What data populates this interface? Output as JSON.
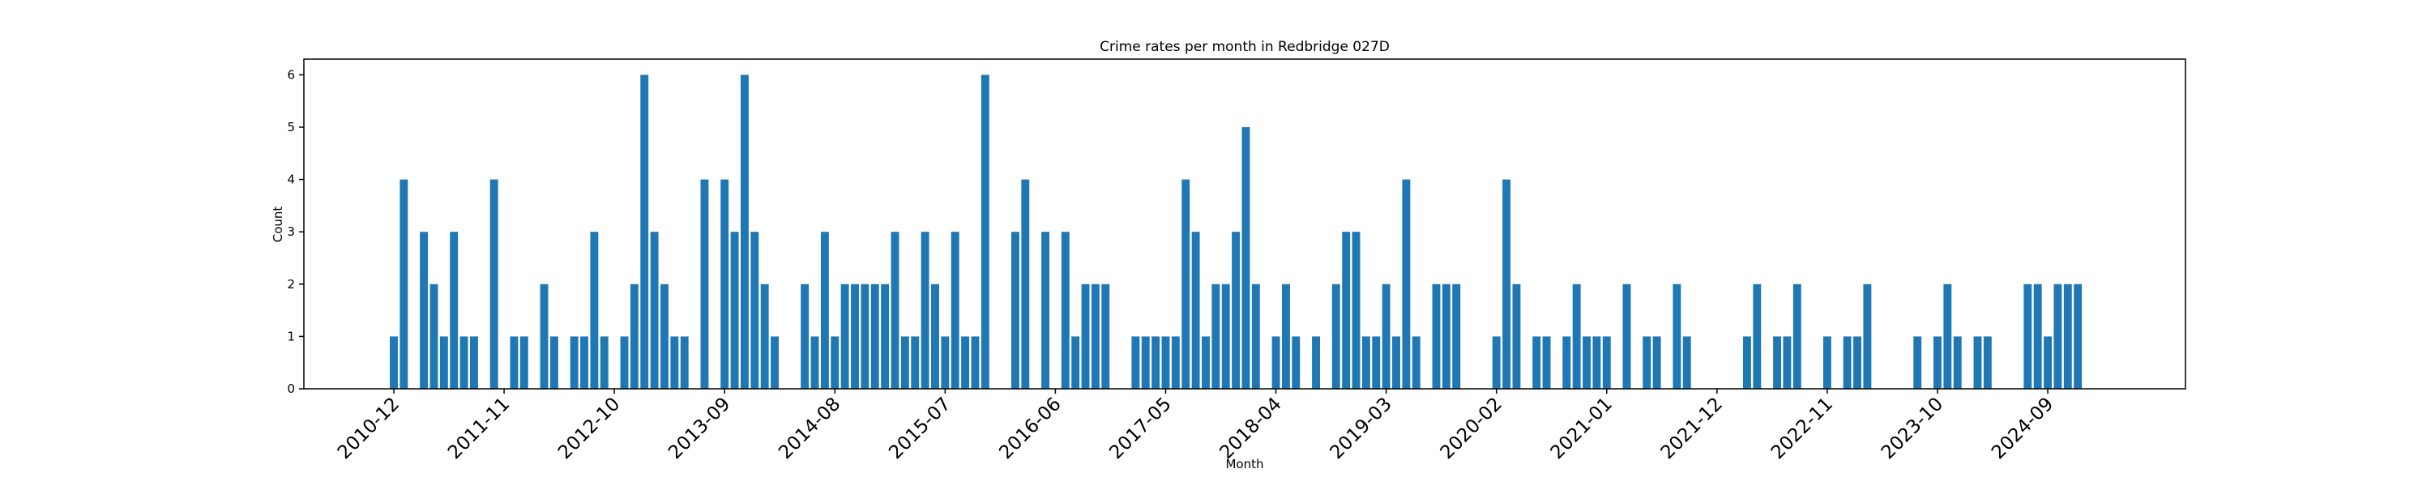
{
  "chart_data": {
    "type": "bar",
    "title": "Crime rates per month in Redbridge 027D",
    "x_label": "Month",
    "y_label": "Count",
    "color": "#1f77b4",
    "categories": [
      "2010-12",
      null,
      null,
      null,
      null,
      null,
      null,
      null,
      null,
      null,
      null,
      "2011-11",
      null,
      null,
      null,
      null,
      null,
      null,
      null,
      null,
      null,
      null,
      "2012-10",
      null,
      null,
      null,
      null,
      null,
      null,
      null,
      null,
      null,
      null,
      "2013-09",
      null,
      null,
      null,
      null,
      null,
      null,
      null,
      null,
      null,
      null,
      "2014-08",
      null,
      null,
      null,
      null,
      null,
      null,
      null,
      null,
      null,
      null,
      "2015-07",
      null,
      null,
      null,
      null,
      null,
      null,
      null,
      null,
      null,
      null,
      "2016-06",
      null,
      null,
      null,
      null,
      null,
      null,
      null,
      null,
      null,
      null,
      "2017-05",
      null,
      null,
      null,
      null,
      null,
      null,
      null,
      null,
      null,
      null,
      "2018-04",
      null,
      null,
      null,
      null,
      null,
      null,
      null,
      null,
      null,
      null,
      "2019-03",
      null,
      null,
      null,
      null,
      null,
      null,
      null,
      null,
      null,
      null,
      "2020-02",
      null,
      null,
      null,
      null,
      null,
      null,
      null,
      null,
      null,
      null,
      "2021-01",
      null,
      null,
      null,
      null,
      null,
      null,
      null,
      null,
      null,
      null,
      "2021-12",
      null,
      null,
      null,
      null,
      null,
      null,
      null,
      null,
      null,
      null,
      "2022-11",
      null,
      null,
      null,
      null,
      null,
      null,
      null,
      null,
      null,
      null,
      "2023-10",
      null,
      null,
      null,
      null,
      null,
      null,
      null,
      null,
      null,
      null,
      "2024-09",
      null,
      null,
      null
    ],
    "values": [
      1,
      4,
      0,
      3,
      2,
      1,
      3,
      1,
      1,
      0,
      4,
      0,
      1,
      1,
      0,
      2,
      1,
      0,
      1,
      1,
      3,
      1,
      0,
      1,
      2,
      6,
      3,
      2,
      1,
      1,
      0,
      4,
      0,
      4,
      3,
      6,
      3,
      2,
      1,
      0,
      0,
      2,
      1,
      3,
      1,
      2,
      2,
      2,
      2,
      2,
      3,
      1,
      1,
      3,
      2,
      1,
      3,
      1,
      1,
      6,
      0,
      0,
      3,
      4,
      0,
      3,
      0,
      3,
      1,
      2,
      2,
      2,
      0,
      0,
      1,
      1,
      1,
      1,
      1,
      4,
      3,
      1,
      2,
      2,
      3,
      5,
      2,
      0,
      1,
      2,
      1,
      0,
      1,
      0,
      2,
      3,
      3,
      1,
      1,
      2,
      1,
      4,
      1,
      0,
      2,
      2,
      2,
      0,
      0,
      0,
      1,
      4,
      2,
      0,
      1,
      1,
      0,
      1,
      2,
      1,
      1,
      1,
      0,
      2,
      0,
      1,
      1,
      0,
      2,
      1,
      0,
      0,
      0,
      0,
      0,
      1,
      2,
      0,
      1,
      1,
      2,
      0,
      0,
      1,
      0,
      1,
      1,
      2,
      0,
      0,
      0,
      0,
      1,
      0,
      1,
      2,
      1,
      0,
      1,
      1,
      0,
      0,
      0,
      2,
      2,
      1,
      2,
      2,
      2
    ],
    "ylim": [
      0,
      6.3
    ],
    "yticks": [
      0,
      1,
      2,
      3,
      4,
      5,
      6
    ]
  }
}
